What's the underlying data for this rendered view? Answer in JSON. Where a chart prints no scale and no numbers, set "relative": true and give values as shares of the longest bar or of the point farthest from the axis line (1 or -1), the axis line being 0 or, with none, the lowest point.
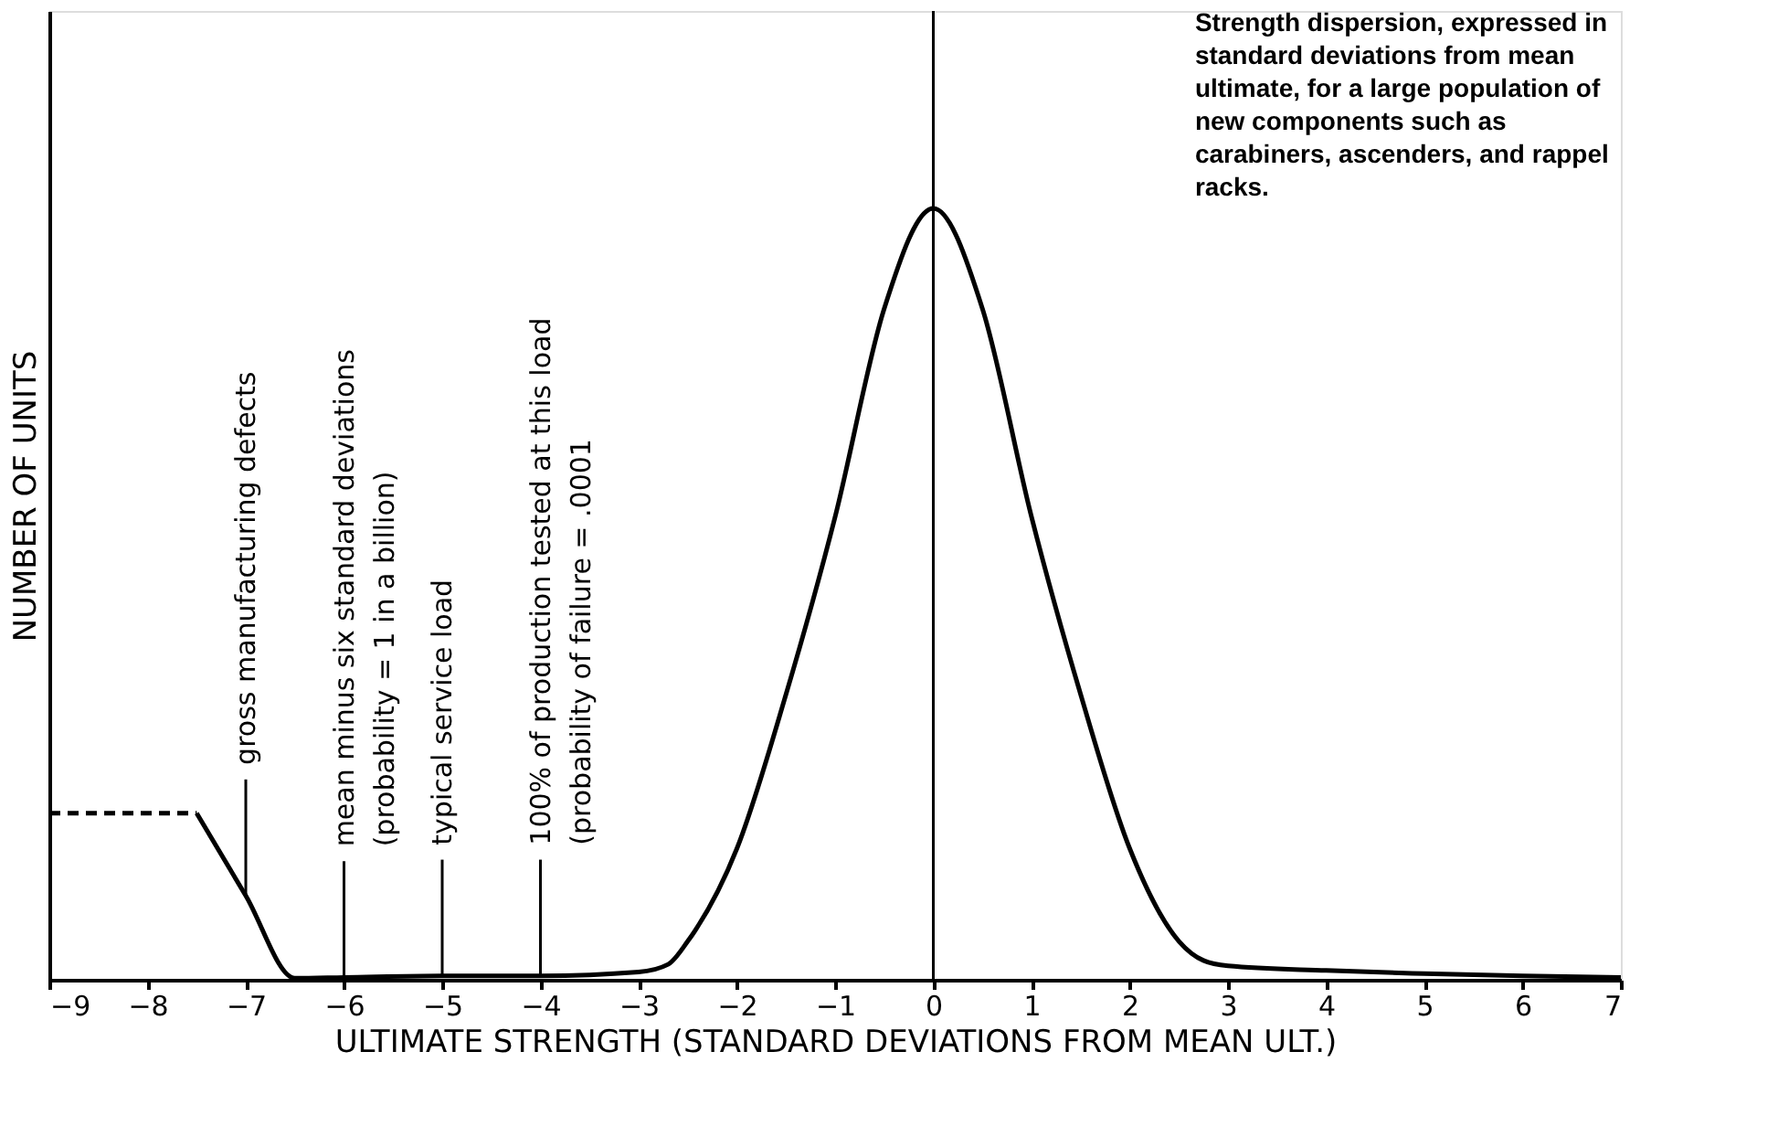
{
  "chart_data": {
    "type": "line",
    "relative": true,
    "xlabel": "ULTIMATE STRENGTH  (STANDARD DEVIATIONS FROM MEAN ULT.)",
    "ylabel": "NUMBER OF UNITS",
    "xlim": [
      -9,
      7
    ],
    "xticks": [
      -9,
      -8,
      -7,
      -6,
      -5,
      -4,
      -3,
      -2,
      -1,
      0,
      1,
      2,
      3,
      4,
      5,
      6,
      7
    ],
    "series": [
      {
        "color": "#000000",
        "line_style": "dashed",
        "x": [
          -9,
          -7.5
        ],
        "values": [
          0.216,
          0.216
        ]
      },
      {
        "color": "#000000",
        "line_style": "solid",
        "x": [
          -7.5,
          -7,
          -6.5,
          -6,
          -5,
          -4,
          -3,
          -2.7,
          -2.5,
          -2,
          -1.5,
          -1,
          -0.5,
          0,
          0.5,
          1,
          1.5,
          2,
          2.5,
          2.75,
          3,
          4,
          5,
          6,
          7
        ],
        "values": [
          0.216,
          0.109,
          0.002,
          0.003,
          0.005,
          0.005,
          0.01,
          0.02,
          0.05,
          0.17,
          0.37,
          0.6,
          0.87,
          1,
          0.87,
          0.6,
          0.37,
          0.17,
          0.05,
          0.025,
          0.018,
          0.012,
          0.008,
          0.005,
          0.003
        ]
      }
    ],
    "ref_lines": [
      {
        "axis": "x",
        "value": 0,
        "color": "#000000"
      }
    ],
    "annotations": [
      {
        "text": "gross manufacturing defects",
        "x": -7,
        "y": 0.109
      },
      {
        "text": "mean minus six standard deviations\n(probability = 1 in a billion)",
        "x": -6,
        "y": 0.003
      },
      {
        "text": "typical service load",
        "x": -5,
        "y": 0.005
      },
      {
        "text": "100% of production tested at this load\n(probability of failure = .0001",
        "x": -4,
        "y": 0.005
      },
      "Strength dispersion, expressed in\nstandard deviations from mean\nultimate, for a large population of\nnew components such as\ncarabiners, ascenders, and rappel\nracks."
    ]
  }
}
